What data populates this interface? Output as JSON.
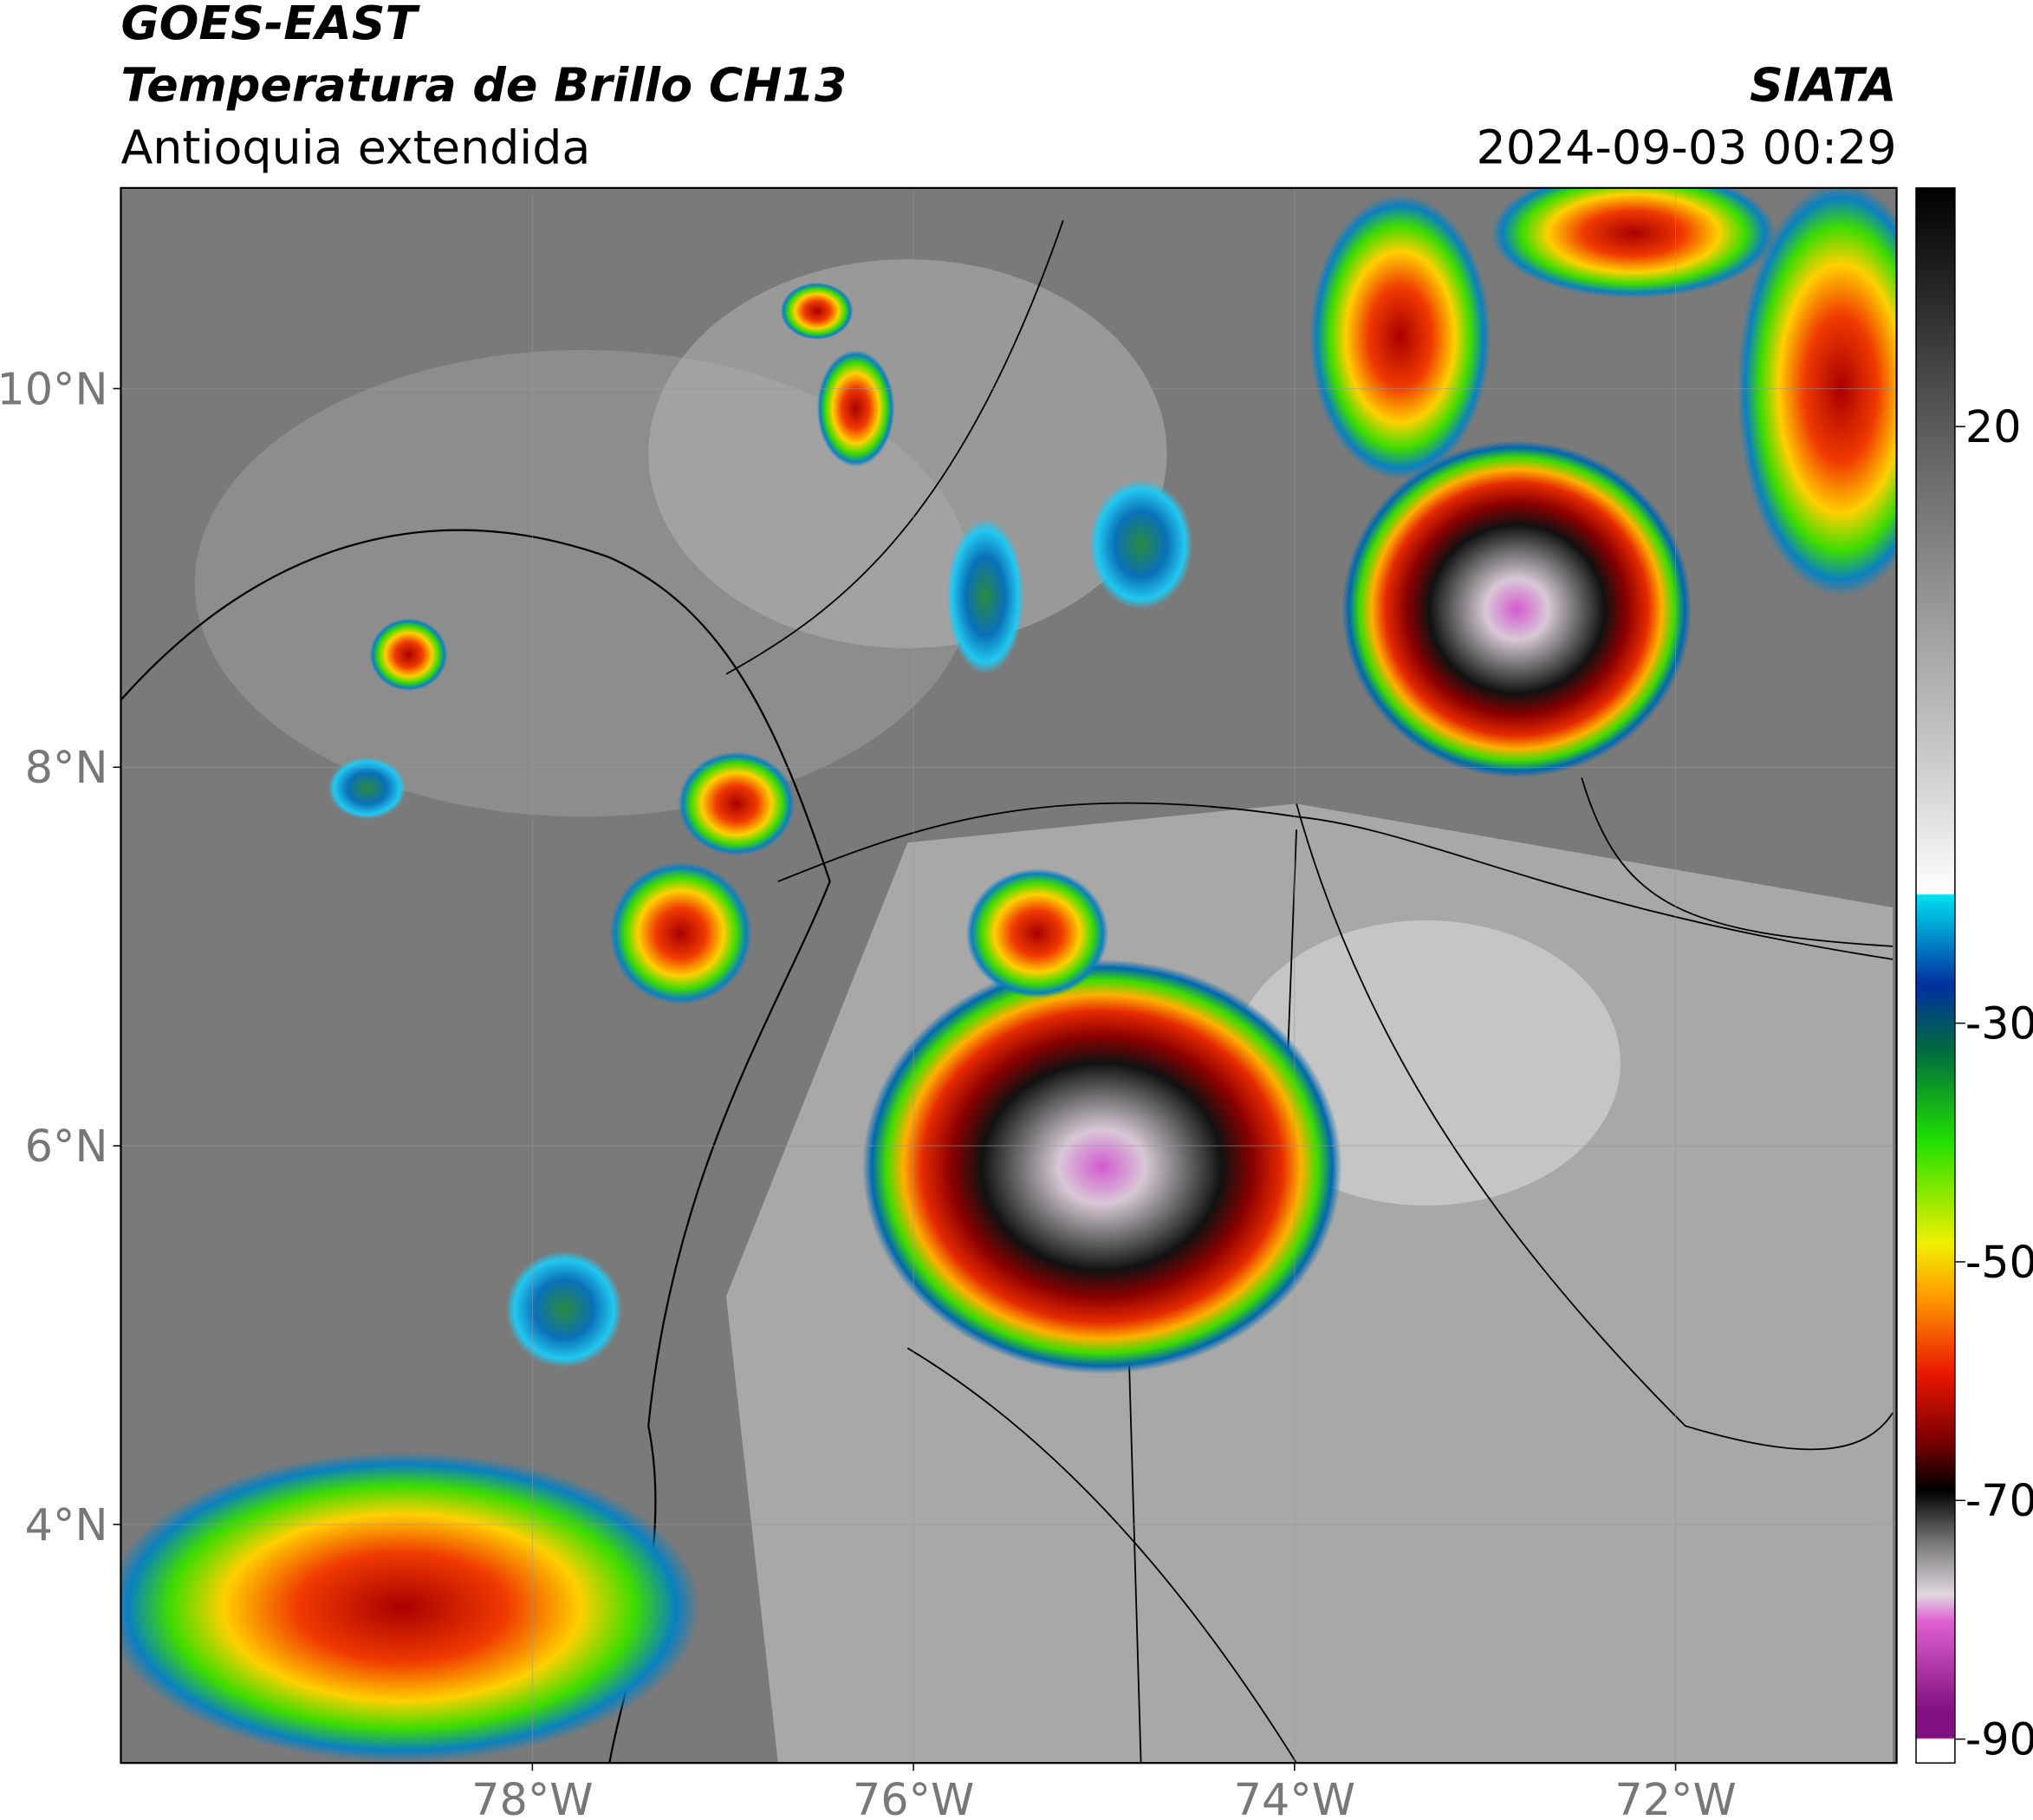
{
  "header": {
    "satellite": "GOES-EAST",
    "product": "Temperatura de Brillo CH13",
    "region": "Antioquia extendida",
    "agency": "SIATA",
    "datetime": "2024-09-03 00:29"
  },
  "map": {
    "lonlim": [
      -80.16,
      -70.84
    ],
    "latlim": [
      2.74,
      11.06
    ],
    "lonticks": [
      {
        "value": -78,
        "label": "78°W"
      },
      {
        "value": -76,
        "label": "76°W"
      },
      {
        "value": -74,
        "label": "74°W"
      },
      {
        "value": -72,
        "label": "72°W"
      }
    ],
    "latticks": [
      {
        "value": 4,
        "label": "4°N"
      },
      {
        "value": 6,
        "label": "6°N"
      },
      {
        "value": 8,
        "label": "8°N"
      },
      {
        "value": 10,
        "label": "10°N"
      }
    ],
    "colorbar": {
      "lim": [
        -92,
        40
      ],
      "ticks": [
        20,
        -30,
        -50,
        -70,
        -90
      ]
    }
  }
}
